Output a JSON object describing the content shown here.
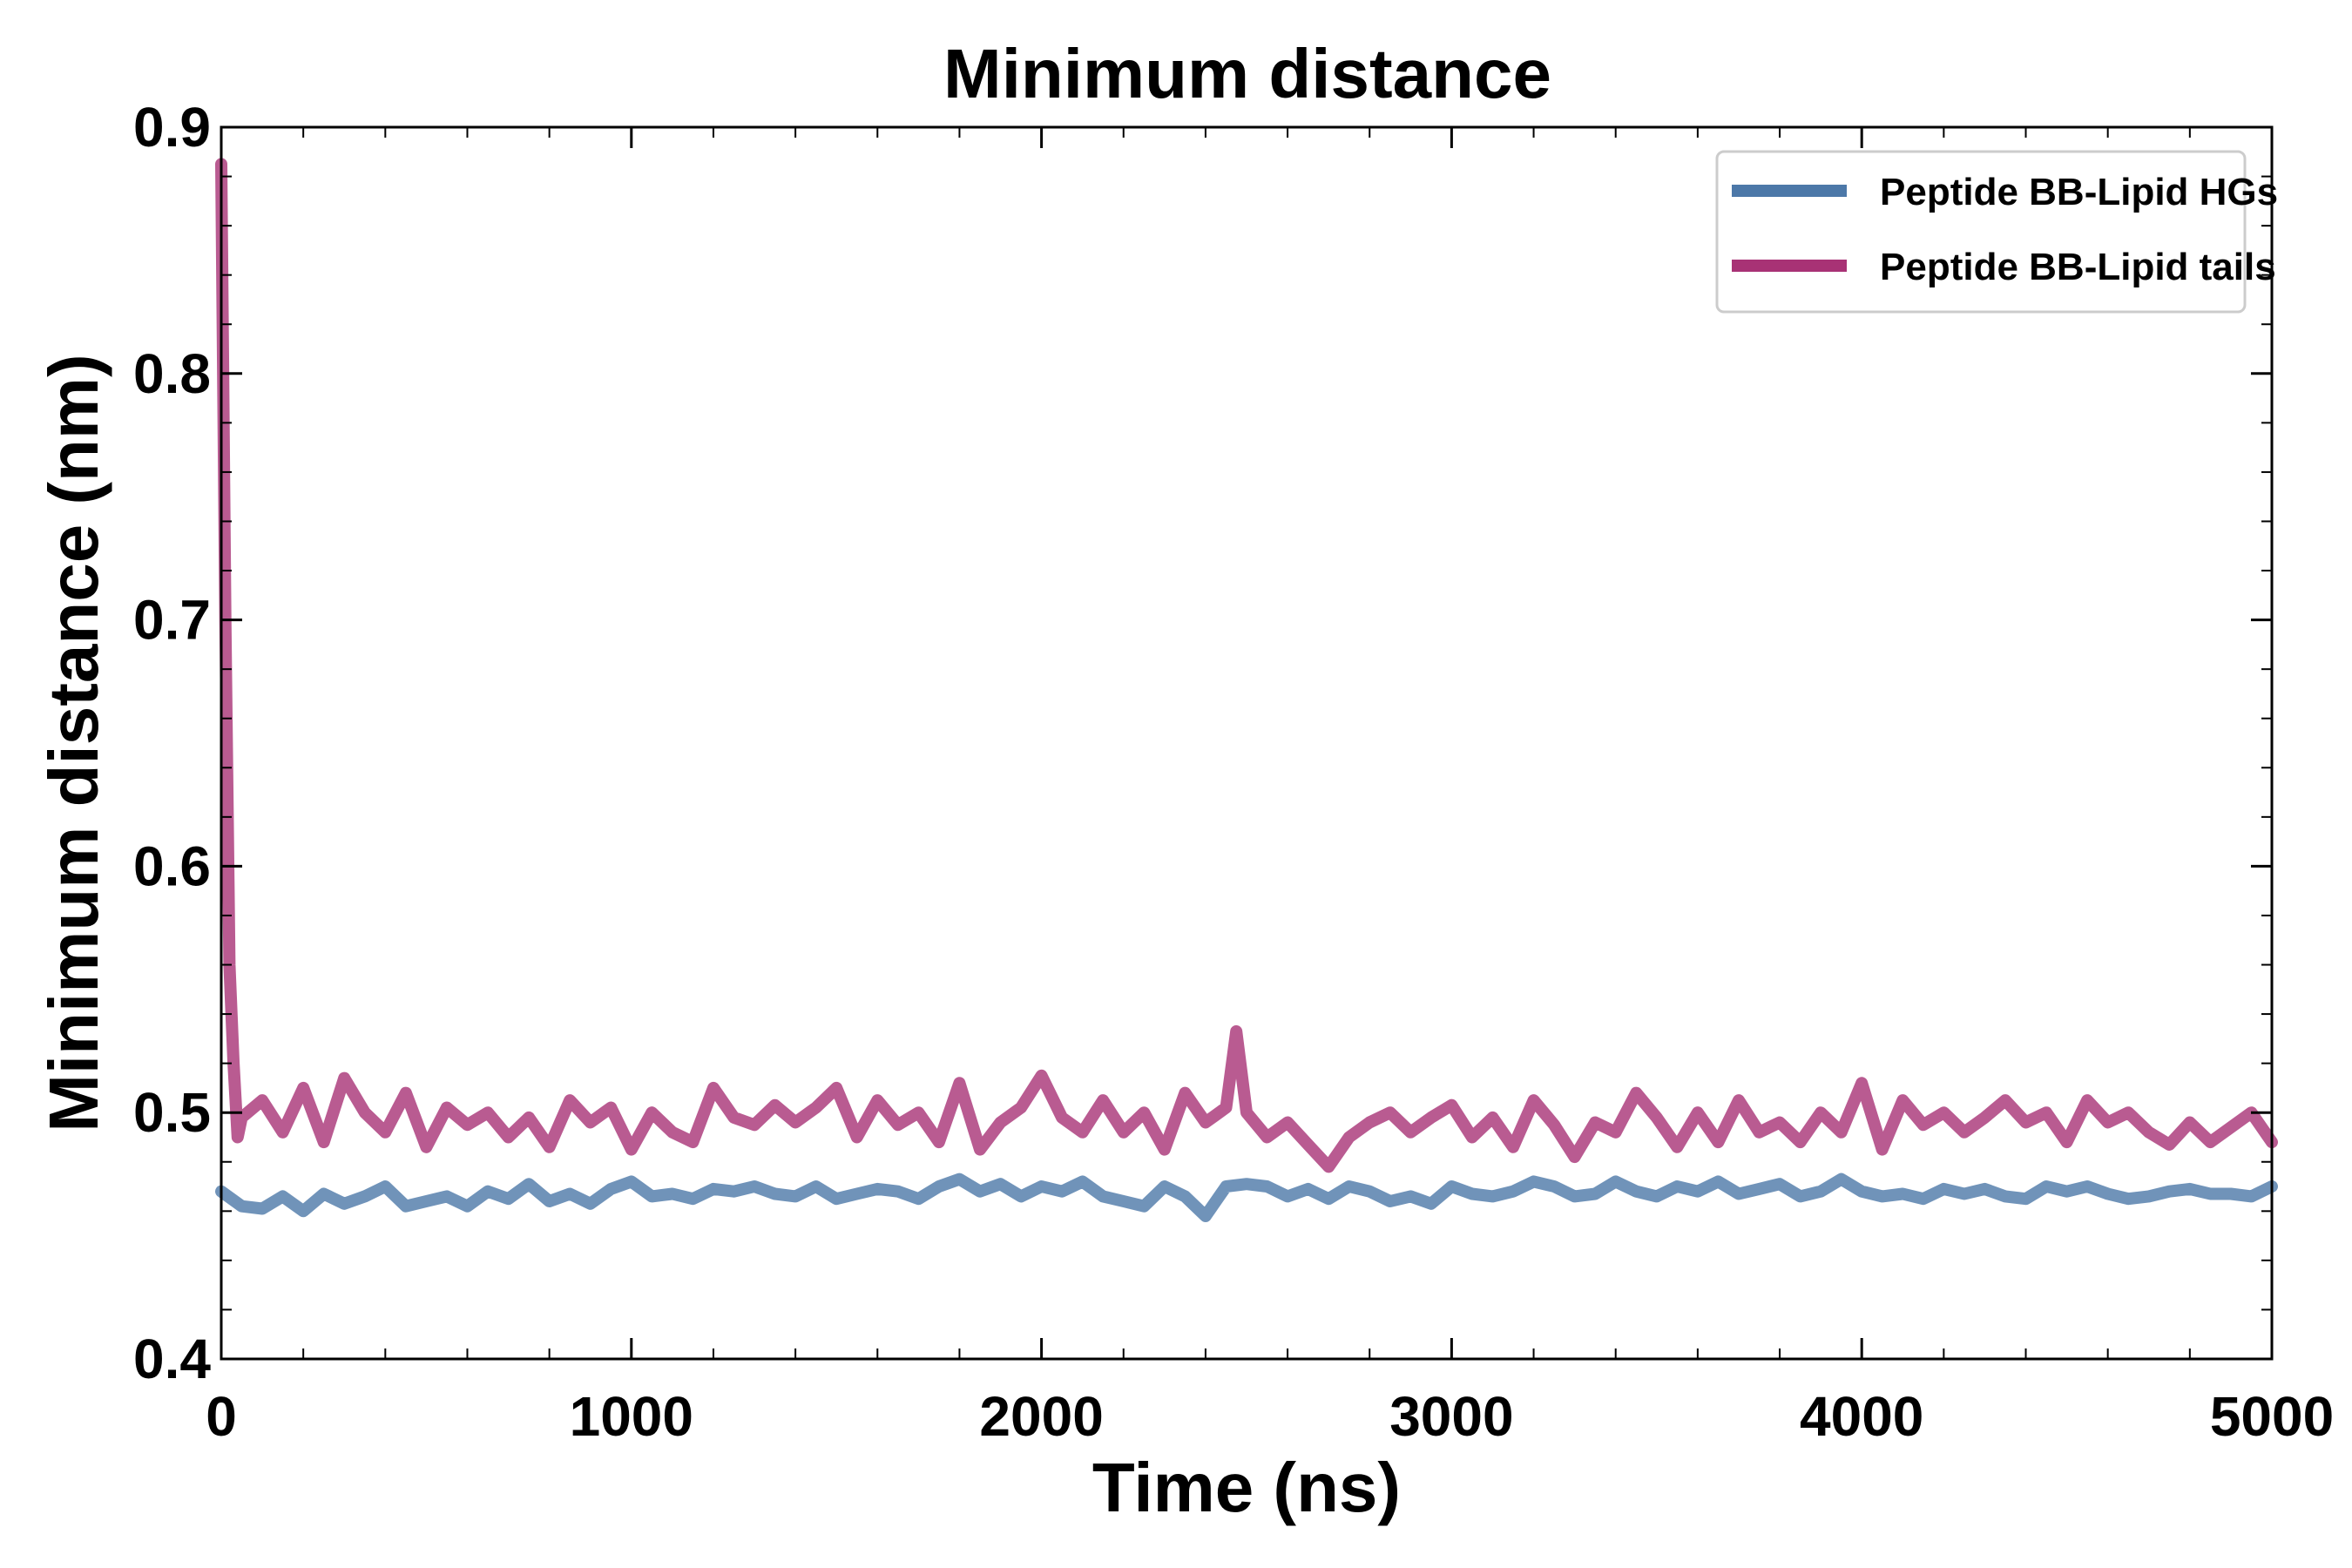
{
  "chart_data": {
    "type": "line",
    "title": "Minimum distance",
    "xlabel": "Time (ns)",
    "ylabel": "Minimum distance (nm)",
    "xlim": [
      0,
      5000
    ],
    "ylim": [
      0.4,
      0.9
    ],
    "x_ticks": [
      0,
      1000,
      2000,
      3000,
      4000,
      5000
    ],
    "x_tick_labels": [
      "0",
      "1000",
      "2000",
      "3000",
      "4000",
      "5000"
    ],
    "y_ticks": [
      0.4,
      0.5,
      0.6,
      0.7,
      0.8,
      0.9
    ],
    "y_tick_labels": [
      "0.4",
      "0.5",
      "0.6",
      "0.7",
      "0.8",
      "0.9"
    ],
    "grid": false,
    "legend_position": "top-right",
    "series": [
      {
        "name": "Peptide BB-Lipid HGs",
        "color": "#4c78a8",
        "x": [
          0,
          50,
          100,
          150,
          200,
          250,
          300,
          350,
          400,
          450,
          500,
          550,
          600,
          650,
          700,
          750,
          800,
          850,
          900,
          950,
          1000,
          1050,
          1100,
          1150,
          1200,
          1250,
          1300,
          1350,
          1400,
          1450,
          1500,
          1550,
          1600,
          1650,
          1700,
          1750,
          1800,
          1850,
          1900,
          1950,
          2000,
          2050,
          2100,
          2150,
          2200,
          2250,
          2300,
          2350,
          2400,
          2450,
          2500,
          2550,
          2600,
          2650,
          2700,
          2750,
          2800,
          2850,
          2900,
          2950,
          3000,
          3050,
          3100,
          3150,
          3200,
          3250,
          3300,
          3350,
          3400,
          3450,
          3500,
          3550,
          3600,
          3650,
          3700,
          3750,
          3800,
          3850,
          3900,
          3950,
          4000,
          4050,
          4100,
          4150,
          4200,
          4250,
          4300,
          4350,
          4400,
          4450,
          4500,
          4550,
          4600,
          4650,
          4700,
          4750,
          4800,
          4850,
          4900,
          4950,
          5000
        ],
        "y": [
          0.468,
          0.462,
          0.461,
          0.466,
          0.46,
          0.467,
          0.463,
          0.466,
          0.47,
          0.462,
          0.464,
          0.466,
          0.462,
          0.468,
          0.465,
          0.471,
          0.464,
          0.467,
          0.463,
          0.469,
          0.472,
          0.466,
          0.467,
          0.465,
          0.469,
          0.468,
          0.47,
          0.467,
          0.466,
          0.47,
          0.465,
          0.467,
          0.469,
          0.468,
          0.465,
          0.47,
          0.473,
          0.468,
          0.471,
          0.466,
          0.47,
          0.468,
          0.472,
          0.466,
          0.464,
          0.462,
          0.47,
          0.466,
          0.458,
          0.47,
          0.471,
          0.47,
          0.466,
          0.469,
          0.465,
          0.47,
          0.468,
          0.464,
          0.466,
          0.463,
          0.47,
          0.467,
          0.466,
          0.468,
          0.472,
          0.47,
          0.466,
          0.467,
          0.472,
          0.468,
          0.466,
          0.47,
          0.468,
          0.472,
          0.467,
          0.469,
          0.471,
          0.466,
          0.468,
          0.473,
          0.468,
          0.466,
          0.467,
          0.465,
          0.469,
          0.467,
          0.469,
          0.466,
          0.465,
          0.47,
          0.468,
          0.47,
          0.467,
          0.465,
          0.466,
          0.468,
          0.469,
          0.467,
          0.467,
          0.466,
          0.47
        ]
      },
      {
        "name": "Peptide BB-Lipid tails",
        "color": "#a83275",
        "x": [
          0,
          10,
          20,
          30,
          40,
          50,
          100,
          150,
          200,
          250,
          300,
          350,
          400,
          450,
          500,
          550,
          600,
          650,
          700,
          750,
          800,
          850,
          900,
          950,
          1000,
          1050,
          1100,
          1150,
          1200,
          1250,
          1300,
          1350,
          1400,
          1450,
          1500,
          1550,
          1600,
          1650,
          1700,
          1750,
          1800,
          1850,
          1900,
          1950,
          2000,
          2050,
          2100,
          2150,
          2200,
          2250,
          2300,
          2350,
          2400,
          2450,
          2475,
          2500,
          2550,
          2600,
          2650,
          2700,
          2750,
          2800,
          2850,
          2900,
          2950,
          3000,
          3050,
          3100,
          3150,
          3200,
          3250,
          3300,
          3350,
          3400,
          3450,
          3500,
          3550,
          3600,
          3650,
          3700,
          3750,
          3800,
          3850,
          3900,
          3950,
          4000,
          4050,
          4100,
          4150,
          4200,
          4250,
          4300,
          4350,
          4400,
          4450,
          4500,
          4550,
          4600,
          4650,
          4700,
          4750,
          4800,
          4850,
          4900,
          4950,
          5000
        ],
        "y": [
          0.885,
          0.7,
          0.56,
          0.52,
          0.49,
          0.498,
          0.505,
          0.492,
          0.51,
          0.488,
          0.514,
          0.5,
          0.492,
          0.508,
          0.486,
          0.502,
          0.495,
          0.5,
          0.49,
          0.498,
          0.486,
          0.505,
          0.496,
          0.502,
          0.485,
          0.5,
          0.492,
          0.488,
          0.51,
          0.498,
          0.495,
          0.503,
          0.496,
          0.502,
          0.51,
          0.49,
          0.505,
          0.495,
          0.5,
          0.488,
          0.512,
          0.485,
          0.496,
          0.502,
          0.515,
          0.498,
          0.492,
          0.505,
          0.492,
          0.5,
          0.485,
          0.508,
          0.496,
          0.502,
          0.533,
          0.5,
          0.49,
          0.496,
          0.487,
          0.478,
          0.49,
          0.496,
          0.5,
          0.492,
          0.498,
          0.503,
          0.49,
          0.498,
          0.486,
          0.505,
          0.495,
          0.482,
          0.496,
          0.492,
          0.508,
          0.498,
          0.486,
          0.5,
          0.488,
          0.505,
          0.492,
          0.496,
          0.488,
          0.5,
          0.492,
          0.512,
          0.485,
          0.505,
          0.495,
          0.5,
          0.492,
          0.498,
          0.505,
          0.496,
          0.5,
          0.488,
          0.505,
          0.496,
          0.5,
          0.492,
          0.487,
          0.496,
          0.488,
          0.494,
          0.5,
          0.488
        ]
      }
    ]
  }
}
